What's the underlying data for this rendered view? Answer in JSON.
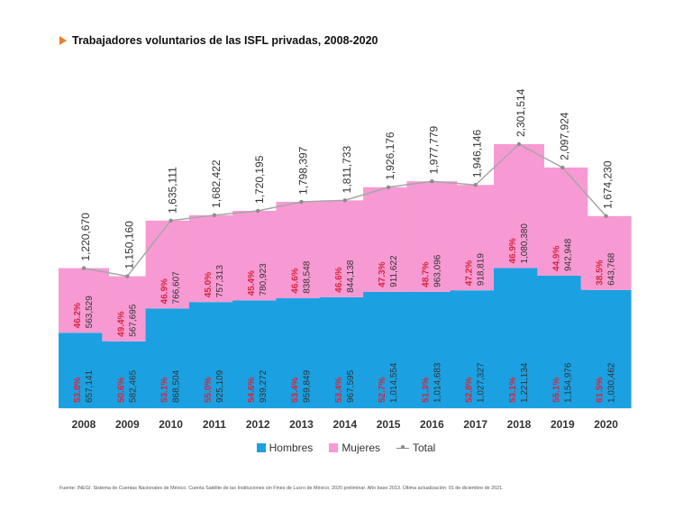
{
  "title": "Trabajadores voluntarios de las ISFL privadas, 2008-2020",
  "source": "Fuente: INEGI. Sistema de Cuentas Nacionales de México. Cuenta Satélite de las Instituciones sin Fines de Lucro de México, 2020  preliminar. Año base 2013.  Última actualización: 01 de diciembre de 2021.",
  "colors": {
    "hombres": "#1BA1E2",
    "mujeres": "#F79AD3",
    "total": "#A6A6A6",
    "pct": "#D7263D",
    "value": "#333333",
    "accent": "#E97E2A"
  },
  "legend": [
    {
      "label": "Hombres",
      "kind": "swatch",
      "color": "#1BA1E2"
    },
    {
      "label": "Mujeres",
      "kind": "swatch",
      "color": "#F79AD3"
    },
    {
      "label": "Total",
      "kind": "line",
      "color": "#888888"
    }
  ],
  "chart_data": {
    "type": "bar",
    "stacked": true,
    "categories": [
      "2008",
      "2009",
      "2010",
      "2011",
      "2012",
      "2013",
      "2014",
      "2015",
      "2016",
      "2017",
      "2018",
      "2019",
      "2020"
    ],
    "series": [
      {
        "name": "Hombres",
        "values": [
          657141,
          582465,
          868504,
          925109,
          939272,
          959849,
          967595,
          1014554,
          1014683,
          1027327,
          1221134,
          1154976,
          1030462
        ],
        "labels": [
          "657,141",
          "582,465",
          "868,504",
          "925,109",
          "939,272",
          "959,849",
          "967,595",
          "1,014,554",
          "1,014,683",
          "1,027,327",
          "1,221,134",
          "1,154,976",
          "1,030,462"
        ],
        "pct_labels": [
          "53.8%",
          "50.6%",
          "53.1%",
          "55.0%",
          "54.6%",
          "53.4%",
          "53.4%",
          "52.7%",
          "51.3%",
          "52.8%",
          "53.1%",
          "55.1%",
          "61.5%"
        ]
      },
      {
        "name": "Mujeres",
        "values": [
          563529,
          567695,
          766607,
          757313,
          780923,
          838548,
          844138,
          911622,
          963096,
          918819,
          1080380,
          942948,
          643768
        ],
        "labels": [
          "563,529",
          "567,695",
          "766,607",
          "757,313",
          "780,923",
          "838,548",
          "844,138",
          "911,622",
          "963,096",
          "918,819",
          "1,080,380",
          "942,948",
          "643,768"
        ],
        "pct_labels": [
          "46.2%",
          "49.4%",
          "46.9%",
          "45.0%",
          "45.4%",
          "46.6%",
          "46.6%",
          "47.3%",
          "48.7%",
          "47.2%",
          "46.9%",
          "44.9%",
          "38.5%"
        ]
      },
      {
        "name": "Total",
        "type": "line",
        "values": [
          1220670,
          1150160,
          1635111,
          1682422,
          1720195,
          1798397,
          1811733,
          1926176,
          1977779,
          1946146,
          2301514,
          2097924,
          1674230
        ],
        "labels": [
          "1,220,670",
          "1,150,160",
          "1,635,111",
          "1,682,422",
          "1,720,195",
          "1,798,397",
          "1,811,733",
          "1,926,176",
          "1,977,779",
          "1,946,146",
          "2,301,514",
          "2,097,924",
          "1,674,230"
        ]
      }
    ],
    "ylim": [
      0,
      2301514
    ],
    "grid": false,
    "legend_position": "bottom"
  }
}
